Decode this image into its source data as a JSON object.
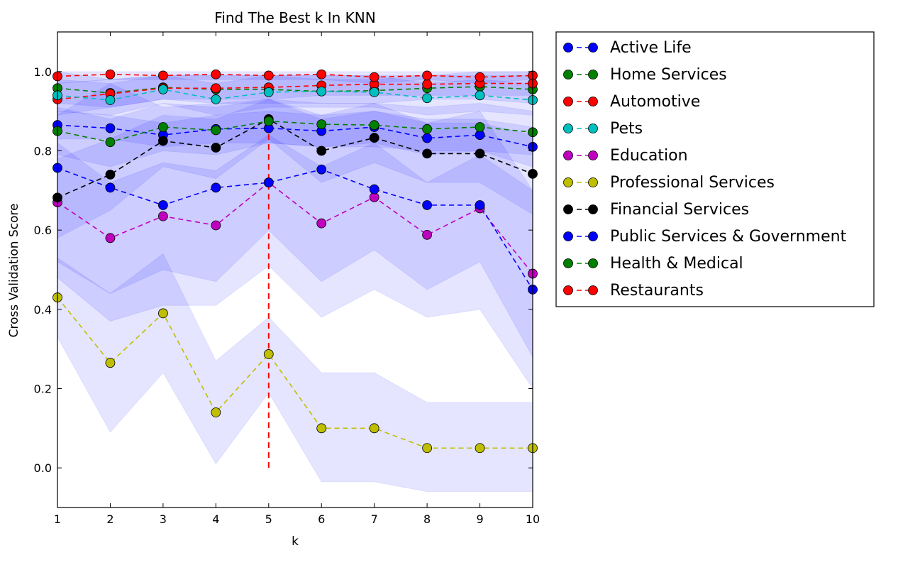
{
  "chart_data": {
    "type": "line",
    "title": "Find The Best k In KNN",
    "xlabel": "k",
    "ylabel": "Cross Validation Score",
    "x": [
      1,
      2,
      3,
      4,
      5,
      6,
      7,
      8,
      9,
      10
    ],
    "xlim": [
      1,
      10
    ],
    "ylim": [
      -0.1,
      1.1
    ],
    "x_ticks": [
      "1",
      "2",
      "3",
      "4",
      "5",
      "6",
      "7",
      "8",
      "9",
      "10"
    ],
    "y_ticks": [
      "0.0",
      "0.2",
      "0.4",
      "0.6",
      "0.8",
      "1.0"
    ],
    "y_tick_values": [
      0.0,
      0.2,
      0.4,
      0.6,
      0.8,
      1.0
    ],
    "grid": false,
    "legend_position": "outside-right",
    "band_color": "#0000ff",
    "best_k": {
      "x": 5,
      "y_range": [
        0.0,
        0.88
      ],
      "color": "#ff0000"
    },
    "series": [
      {
        "name": "Active Life",
        "color": "#0000ff",
        "values": [
          0.865,
          0.857,
          0.84,
          0.855,
          0.857,
          0.85,
          0.86,
          0.832,
          0.84,
          0.81
        ],
        "band": [
          [
            0.83,
            0.9
          ],
          [
            0.83,
            0.89
          ],
          [
            0.81,
            0.87
          ],
          [
            0.82,
            0.89
          ],
          [
            0.82,
            0.9
          ],
          [
            0.81,
            0.89
          ],
          [
            0.82,
            0.9
          ],
          [
            0.79,
            0.88
          ],
          [
            0.8,
            0.88
          ],
          [
            0.76,
            0.86
          ]
        ]
      },
      {
        "name": "Home Services",
        "color": "#008000",
        "values": [
          0.958,
          0.946,
          0.96,
          0.955,
          0.955,
          0.95,
          0.952,
          0.958,
          0.962,
          0.955
        ],
        "band": [
          [
            0.92,
            1.0
          ],
          [
            0.91,
            0.98
          ],
          [
            0.93,
            0.99
          ],
          [
            0.92,
            0.99
          ],
          [
            0.92,
            0.99
          ],
          [
            0.92,
            0.98
          ],
          [
            0.92,
            0.98
          ],
          [
            0.93,
            0.99
          ],
          [
            0.93,
            0.99
          ],
          [
            0.92,
            0.99
          ]
        ]
      },
      {
        "name": "Automotive",
        "color": "#ff0000",
        "values": [
          0.93,
          0.944,
          0.958,
          0.958,
          0.96,
          0.965,
          0.968,
          0.968,
          0.97,
          0.97
        ],
        "band": [
          [
            0.89,
            0.97
          ],
          [
            0.91,
            0.98
          ],
          [
            0.93,
            0.99
          ],
          [
            0.93,
            0.99
          ],
          [
            0.93,
            0.99
          ],
          [
            0.94,
            0.99
          ],
          [
            0.94,
            0.99
          ],
          [
            0.94,
            0.99
          ],
          [
            0.94,
            1.0
          ],
          [
            0.94,
            1.0
          ]
        ]
      },
      {
        "name": "Pets",
        "color": "#00bfbf",
        "values": [
          0.94,
          0.928,
          0.955,
          0.93,
          0.948,
          0.95,
          0.948,
          0.933,
          0.94,
          0.928
        ],
        "band": [
          [
            0.9,
            0.98
          ],
          [
            0.89,
            0.97
          ],
          [
            0.92,
            0.99
          ],
          [
            0.89,
            0.97
          ],
          [
            0.91,
            0.99
          ],
          [
            0.91,
            0.99
          ],
          [
            0.91,
            0.99
          ],
          [
            0.89,
            0.97
          ],
          [
            0.9,
            0.98
          ],
          [
            0.89,
            0.97
          ]
        ]
      },
      {
        "name": "Education",
        "color": "#bf00bf",
        "values": [
          0.67,
          0.58,
          0.635,
          0.612,
          0.72,
          0.617,
          0.683,
          0.588,
          0.655,
          0.49
        ],
        "band": [
          [
            0.52,
            0.82
          ],
          [
            0.44,
            0.72
          ],
          [
            0.5,
            0.77
          ],
          [
            0.47,
            0.75
          ],
          [
            0.6,
            0.84
          ],
          [
            0.47,
            0.76
          ],
          [
            0.55,
            0.82
          ],
          [
            0.45,
            0.72
          ],
          [
            0.52,
            0.79
          ],
          [
            0.28,
            0.7
          ]
        ]
      },
      {
        "name": "Professional Services",
        "color": "#bfbf00",
        "values": [
          0.43,
          0.265,
          0.39,
          0.14,
          0.287,
          0.1,
          0.1,
          0.05,
          0.05,
          0.05
        ],
        "band": [
          [
            0.33,
            0.53
          ],
          [
            0.09,
            0.44
          ],
          [
            0.24,
            0.54
          ],
          [
            0.01,
            0.27
          ],
          [
            0.19,
            0.38
          ],
          [
            -0.035,
            0.24
          ],
          [
            -0.035,
            0.24
          ],
          [
            -0.06,
            0.165
          ],
          [
            -0.06,
            0.165
          ],
          [
            -0.06,
            0.165
          ]
        ]
      },
      {
        "name": "Financial Services",
        "color": "#000000",
        "values": [
          0.682,
          0.74,
          0.825,
          0.808,
          0.88,
          0.8,
          0.833,
          0.793,
          0.793,
          0.742
        ],
        "band": [
          [
            0.58,
            0.78
          ],
          [
            0.65,
            0.83
          ],
          [
            0.76,
            0.89
          ],
          [
            0.73,
            0.88
          ],
          [
            0.83,
            0.93
          ],
          [
            0.72,
            0.88
          ],
          [
            0.77,
            0.9
          ],
          [
            0.72,
            0.87
          ],
          [
            0.72,
            0.87
          ],
          [
            0.64,
            0.84
          ]
        ]
      },
      {
        "name": "Public Services & Government",
        "color": "#0000ff",
        "values": [
          0.757,
          0.707,
          0.663,
          0.707,
          0.72,
          0.753,
          0.703,
          0.663,
          0.663,
          0.45
        ],
        "band": [
          [
            0.48,
            0.89
          ],
          [
            0.37,
            0.97
          ],
          [
            0.41,
            0.91
          ],
          [
            0.41,
            0.92
          ],
          [
            0.51,
            0.93
          ],
          [
            0.38,
            0.89
          ],
          [
            0.45,
            0.92
          ],
          [
            0.38,
            0.87
          ],
          [
            0.4,
            0.9
          ],
          [
            0.2,
            0.7
          ]
        ]
      },
      {
        "name": "Health & Medical",
        "color": "#008000",
        "values": [
          0.85,
          0.822,
          0.86,
          0.852,
          0.875,
          0.867,
          0.865,
          0.855,
          0.86,
          0.847
        ],
        "band": [
          [
            0.79,
            0.91
          ],
          [
            0.76,
            0.88
          ],
          [
            0.8,
            0.92
          ],
          [
            0.79,
            0.91
          ],
          [
            0.82,
            0.93
          ],
          [
            0.81,
            0.92
          ],
          [
            0.81,
            0.92
          ],
          [
            0.8,
            0.91
          ],
          [
            0.8,
            0.92
          ],
          [
            0.79,
            0.9
          ]
        ]
      },
      {
        "name": "Restaurants",
        "color": "#ff0000",
        "values": [
          0.988,
          0.993,
          0.99,
          0.993,
          0.99,
          0.993,
          0.986,
          0.99,
          0.986,
          0.99
        ],
        "band": [
          [
            0.97,
            1.0
          ],
          [
            0.98,
            1.0
          ],
          [
            0.98,
            1.0
          ],
          [
            0.98,
            1.0
          ],
          [
            0.98,
            1.0
          ],
          [
            0.98,
            1.0
          ],
          [
            0.97,
            1.0
          ],
          [
            0.98,
            1.0
          ],
          [
            0.97,
            1.0
          ],
          [
            0.98,
            1.0
          ]
        ]
      }
    ]
  }
}
